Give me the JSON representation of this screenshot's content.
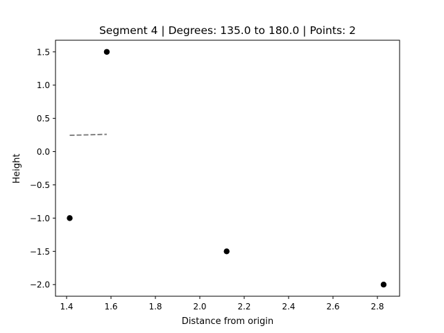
{
  "chart_data": {
    "type": "scatter",
    "title": "Segment 4 | Degrees: 135.0 to 180.0 | Points: 2",
    "xlabel": "Distance from origin",
    "ylabel": "Height",
    "xlim": [
      1.35,
      2.9
    ],
    "ylim": [
      -2.175,
      1.675
    ],
    "xticks": [
      1.4,
      1.6,
      1.8,
      2.0,
      2.2,
      2.4,
      2.6,
      2.8
    ],
    "xtick_labels": [
      "1.4",
      "1.6",
      "1.8",
      "2.0",
      "2.2",
      "2.4",
      "2.6",
      "2.8"
    ],
    "yticks": [
      1.5,
      1.0,
      0.5,
      0.0,
      -0.5,
      -1.0,
      -1.5,
      -2.0
    ],
    "ytick_labels": [
      "1.5",
      "1.0",
      "0.5",
      "0.0",
      "−0.5",
      "−1.0",
      "−1.5",
      "−2.0"
    ],
    "grid": false,
    "series": [
      {
        "kind": "points",
        "color": "#000000",
        "x": [
          1.581,
          1.414,
          2.121,
          2.828
        ],
        "y": [
          1.5,
          -1.0,
          -1.5,
          -2.0
        ]
      },
      {
        "kind": "dashed-line",
        "color": "#808080",
        "x": [
          1.414,
          1.581
        ],
        "y": [
          0.245,
          0.26
        ]
      }
    ]
  }
}
